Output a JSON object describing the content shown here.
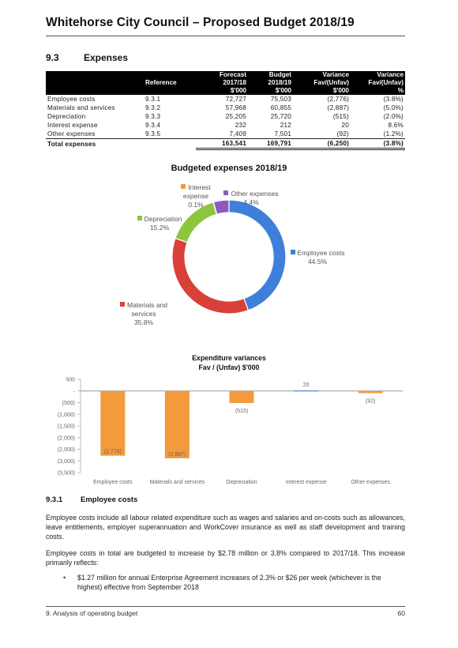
{
  "header": {
    "title": "Whitehorse City Council – Proposed Budget 2018/19"
  },
  "section": {
    "number": "9.3",
    "title": "Expenses"
  },
  "table": {
    "headers": {
      "reference": "Reference",
      "forecast": [
        "Forecast",
        "2017/18",
        "$'000"
      ],
      "budget": [
        "Budget",
        "2018/19",
        "$'000"
      ],
      "variance_amt": [
        "Variance",
        "Fav/(Unfav)",
        "$'000"
      ],
      "variance_pct": [
        "Variance",
        "Fav/(Unfav)",
        "%"
      ]
    },
    "rows": [
      {
        "label": "Employee costs",
        "ref": "9.3.1",
        "forecast": "72,727",
        "budget": "75,503",
        "variance": "(2,776)",
        "pct": "(3.8%)"
      },
      {
        "label": "Materials and services",
        "ref": "9.3.2",
        "forecast": "57,968",
        "budget": "60,855",
        "variance": "(2,887)",
        "pct": "(5.0%)"
      },
      {
        "label": "Depreciation",
        "ref": "9.3.3",
        "forecast": "25,205",
        "budget": "25,720",
        "variance": "(515)",
        "pct": "(2.0%)"
      },
      {
        "label": "Interest expense",
        "ref": "9.3.4",
        "forecast": "232",
        "budget": "212",
        "variance": "20",
        "pct": "8.6%"
      },
      {
        "label": "Other expenses",
        "ref": "9.3.5",
        "forecast": "7,409",
        "budget": "7,501",
        "variance": "(92)",
        "pct": "(1.2%)"
      }
    ],
    "total": {
      "label": "Total expenses",
      "forecast": "163,541",
      "budget": "169,791",
      "variance": "(6,250)",
      "pct": "(3.8%)"
    }
  },
  "chart_data": [
    {
      "type": "pie",
      "title": "Budgeted expenses 2018/19",
      "donut": true,
      "categories": [
        "Employee costs",
        "Materials and services",
        "Depreciation",
        "Interest expense",
        "Other expenses"
      ],
      "values": [
        44.5,
        35.8,
        15.2,
        0.1,
        4.4
      ],
      "labels": [
        "44.5%",
        "35.8%",
        "15.2%",
        "0.1%",
        "4.4%"
      ],
      "colors": [
        "#3f7fd9",
        "#d9403a",
        "#8cc63f",
        "#f39a3c",
        "#8a5cc0"
      ],
      "label_lines": {
        "Employee costs": [
          "Employee costs",
          "44.5%"
        ],
        "Materials and services": [
          "Materials and",
          "services",
          "35.8%"
        ],
        "Depreciation": [
          "Depreciation",
          "15.2%"
        ],
        "Interest expense": [
          "Interest",
          "expense",
          "0.1%"
        ],
        "Other expenses": [
          "Other expenses",
          "4.4%"
        ]
      }
    },
    {
      "type": "bar",
      "title": "Expenditure variances",
      "subtitle": "Fav / (Unfav) $'000",
      "categories": [
        "Employee costs",
        "Materials and services",
        "Depreciation",
        "Interest expense",
        "Other expenses"
      ],
      "values": [
        -2776,
        -2887,
        -515,
        20,
        -92
      ],
      "labels": [
        "(2,776)",
        "(2,887)",
        "(515)",
        "20",
        "(92)"
      ],
      "yticks": [
        500,
        0,
        -500,
        -1000,
        -1500,
        -2000,
        -2500,
        -3000,
        -3500
      ],
      "ytick_labels": [
        "500",
        "-",
        "(500)",
        "(1,000)",
        "(1,500)",
        "(2,000)",
        "(2,500)",
        "(3,000)",
        "(3,500)"
      ],
      "ylim": [
        -3500,
        500
      ],
      "color": "#f39a3c",
      "positive_color": "#3f7fd9",
      "grid": false
    }
  ],
  "subsection": {
    "number": "9.3.1",
    "title": "Employee costs"
  },
  "paragraphs": [
    "Employee costs include all labour related expenditure such as wages and salaries and on-costs such as allowances, leave entitlements, employer superannuation and WorkCover insurance as well as staff development and training costs.",
    "Employee costs in total are budgeted to increase by $2.78 million or 3.8% compared to 2017/18. This increase primarily reflects:"
  ],
  "bullets": [
    "$1.27 million for annual Enterprise Agreement increases of 2.3% or $26 per week (whichever is the highest) effective from September 2018"
  ],
  "bullet_char": "•",
  "footer": {
    "left": "9. Analysis of operating budget",
    "right": "60"
  }
}
